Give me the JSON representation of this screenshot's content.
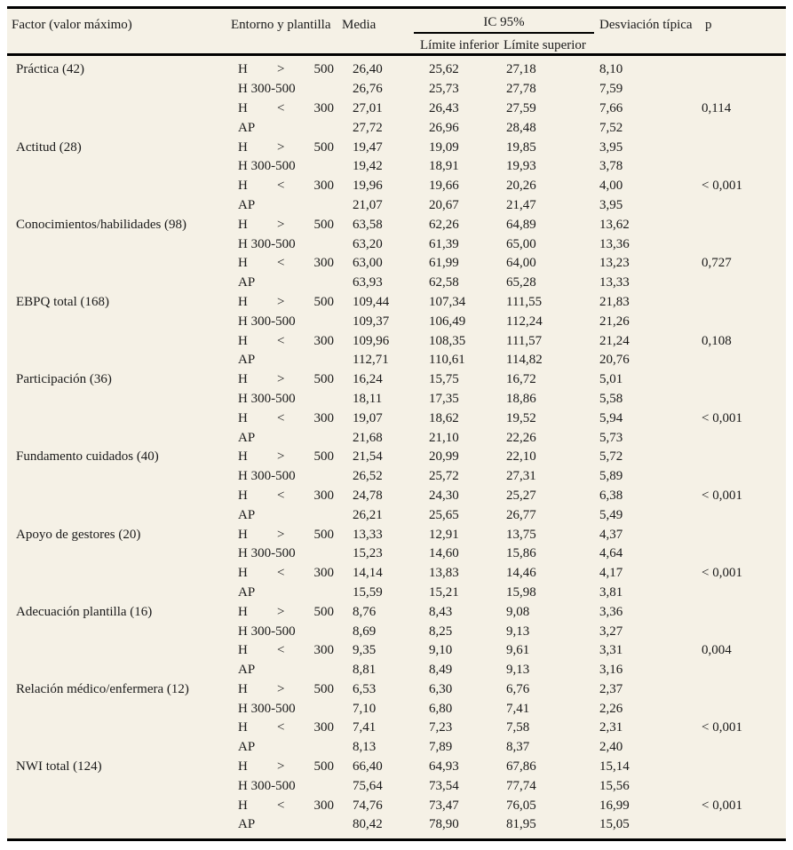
{
  "colors": {
    "paper": "#f5f1e6",
    "ink": "#1a1a1a",
    "rule": "#000000"
  },
  "table": {
    "header": {
      "factor": "Factor (valor máximo)",
      "entorno": "Entorno y plantilla",
      "media": "Media",
      "ic95": "IC 95%",
      "limite_inferior": "Límite inferior",
      "limite_superior": "Límite superior",
      "desviacion": "Desviación típica",
      "p": "p"
    },
    "groups": [
      {
        "factor": "Práctica (42)",
        "rows": [
          {
            "entorno": "H > 500",
            "media": "26,40",
            "li": "25,62",
            "ls": "27,18",
            "dt": "8,10",
            "p": ""
          },
          {
            "entorno": "H 300-500",
            "media": "26,76",
            "li": "25,73",
            "ls": "27,78",
            "dt": "7,59",
            "p": ""
          },
          {
            "entorno": "H < 300",
            "media": "27,01",
            "li": "26,43",
            "ls": "27,59",
            "dt": "7,66",
            "p": "0,114"
          },
          {
            "entorno": "AP",
            "media": "27,72",
            "li": "26,96",
            "ls": "28,48",
            "dt": "7,52",
            "p": ""
          }
        ]
      },
      {
        "factor": "Actitud (28)",
        "rows": [
          {
            "entorno": "H > 500",
            "media": "19,47",
            "li": "19,09",
            "ls": "19,85",
            "dt": "3,95",
            "p": ""
          },
          {
            "entorno": "H 300-500",
            "media": "19,42",
            "li": "18,91",
            "ls": "19,93",
            "dt": "3,78",
            "p": ""
          },
          {
            "entorno": "H < 300",
            "media": "19,96",
            "li": "19,66",
            "ls": "20,26",
            "dt": "4,00",
            "p": "< 0,001"
          },
          {
            "entorno": "AP",
            "media": "21,07",
            "li": "20,67",
            "ls": "21,47",
            "dt": "3,95",
            "p": ""
          }
        ]
      },
      {
        "factor": "Conocimientos/habilidades (98)",
        "rows": [
          {
            "entorno": "H > 500",
            "media": "63,58",
            "li": "62,26",
            "ls": "64,89",
            "dt": "13,62",
            "p": ""
          },
          {
            "entorno": "H 300-500",
            "media": "63,20",
            "li": "61,39",
            "ls": "65,00",
            "dt": "13,36",
            "p": ""
          },
          {
            "entorno": "H < 300",
            "media": "63,00",
            "li": "61,99",
            "ls": "64,00",
            "dt": "13,23",
            "p": "0,727"
          },
          {
            "entorno": "AP",
            "media": "63,93",
            "li": "62,58",
            "ls": "65,28",
            "dt": "13,33",
            "p": ""
          }
        ]
      },
      {
        "factor": "EBPQ total (168)",
        "rows": [
          {
            "entorno": "H > 500",
            "media": "109,44",
            "li": "107,34",
            "ls": "111,55",
            "dt": "21,83",
            "p": ""
          },
          {
            "entorno": "H 300-500",
            "media": "109,37",
            "li": "106,49",
            "ls": "112,24",
            "dt": "21,26",
            "p": ""
          },
          {
            "entorno": "H < 300",
            "media": "109,96",
            "li": "108,35",
            "ls": "111,57",
            "dt": "21,24",
            "p": "0,108"
          },
          {
            "entorno": "AP",
            "media": "112,71",
            "li": "110,61",
            "ls": "114,82",
            "dt": "20,76",
            "p": ""
          }
        ]
      },
      {
        "factor": "Participación (36)",
        "rows": [
          {
            "entorno": "H > 500",
            "media": "16,24",
            "li": "15,75",
            "ls": "16,72",
            "dt": "5,01",
            "p": ""
          },
          {
            "entorno": "H 300-500",
            "media": "18,11",
            "li": "17,35",
            "ls": "18,86",
            "dt": "5,58",
            "p": ""
          },
          {
            "entorno": "H < 300",
            "media": "19,07",
            "li": "18,62",
            "ls": "19,52",
            "dt": "5,94",
            "p": "< 0,001"
          },
          {
            "entorno": "AP",
            "media": "21,68",
            "li": "21,10",
            "ls": "22,26",
            "dt": "5,73",
            "p": ""
          }
        ]
      },
      {
        "factor": "Fundamento cuidados (40)",
        "rows": [
          {
            "entorno": "H > 500",
            "media": "21,54",
            "li": "20,99",
            "ls": "22,10",
            "dt": "5,72",
            "p": ""
          },
          {
            "entorno": "H 300-500",
            "media": "26,52",
            "li": "25,72",
            "ls": "27,31",
            "dt": "5,89",
            "p": ""
          },
          {
            "entorno": "H < 300",
            "media": "24,78",
            "li": "24,30",
            "ls": "25,27",
            "dt": "6,38",
            "p": "< 0,001"
          },
          {
            "entorno": "AP",
            "media": "26,21",
            "li": "25,65",
            "ls": "26,77",
            "dt": "5,49",
            "p": ""
          }
        ]
      },
      {
        "factor": "Apoyo de gestores (20)",
        "rows": [
          {
            "entorno": "H > 500",
            "media": "13,33",
            "li": "12,91",
            "ls": "13,75",
            "dt": "4,37",
            "p": ""
          },
          {
            "entorno": "H 300-500",
            "media": "15,23",
            "li": "14,60",
            "ls": "15,86",
            "dt": "4,64",
            "p": ""
          },
          {
            "entorno": "H < 300",
            "media": "14,14",
            "li": "13,83",
            "ls": "14,46",
            "dt": "4,17",
            "p": "< 0,001"
          },
          {
            "entorno": "AP",
            "media": "15,59",
            "li": "15,21",
            "ls": "15,98",
            "dt": "3,81",
            "p": ""
          }
        ]
      },
      {
        "factor": "Adecuación plantilla (16)",
        "rows": [
          {
            "entorno": "H > 500",
            "media": "8,76",
            "li": "8,43",
            "ls": "9,08",
            "dt": "3,36",
            "p": ""
          },
          {
            "entorno": "H 300-500",
            "media": "8,69",
            "li": "8,25",
            "ls": "9,13",
            "dt": "3,27",
            "p": ""
          },
          {
            "entorno": "H < 300",
            "media": "9,35",
            "li": "9,10",
            "ls": "9,61",
            "dt": "3,31",
            "p": "0,004"
          },
          {
            "entorno": "AP",
            "media": "8,81",
            "li": "8,49",
            "ls": "9,13",
            "dt": "3,16",
            "p": ""
          }
        ]
      },
      {
        "factor": "Relación médico/enfermera (12)",
        "rows": [
          {
            "entorno": "H > 500",
            "media": "6,53",
            "li": "6,30",
            "ls": "6,76",
            "dt": "2,37",
            "p": ""
          },
          {
            "entorno": "H 300-500",
            "media": "7,10",
            "li": "6,80",
            "ls": "7,41",
            "dt": "2,26",
            "p": ""
          },
          {
            "entorno": "H < 300",
            "media": "7,41",
            "li": "7,23",
            "ls": "7,58",
            "dt": "2,31",
            "p": "< 0,001"
          },
          {
            "entorno": "AP",
            "media": "8,13",
            "li": "7,89",
            "ls": "8,37",
            "dt": "2,40",
            "p": ""
          }
        ]
      },
      {
        "factor": "NWI total (124)",
        "rows": [
          {
            "entorno": "H > 500",
            "media": "66,40",
            "li": "64,93",
            "ls": "67,86",
            "dt": "15,14",
            "p": ""
          },
          {
            "entorno": "H 300-500",
            "media": "75,64",
            "li": "73,54",
            "ls": "77,74",
            "dt": "15,56",
            "p": ""
          },
          {
            "entorno": "H < 300",
            "media": "74,76",
            "li": "73,47",
            "ls": "76,05",
            "dt": "16,99",
            "p": "< 0,001"
          },
          {
            "entorno": "AP",
            "media": "80,42",
            "li": "78,90",
            "ls": "81,95",
            "dt": "15,05",
            "p": ""
          }
        ]
      }
    ]
  }
}
